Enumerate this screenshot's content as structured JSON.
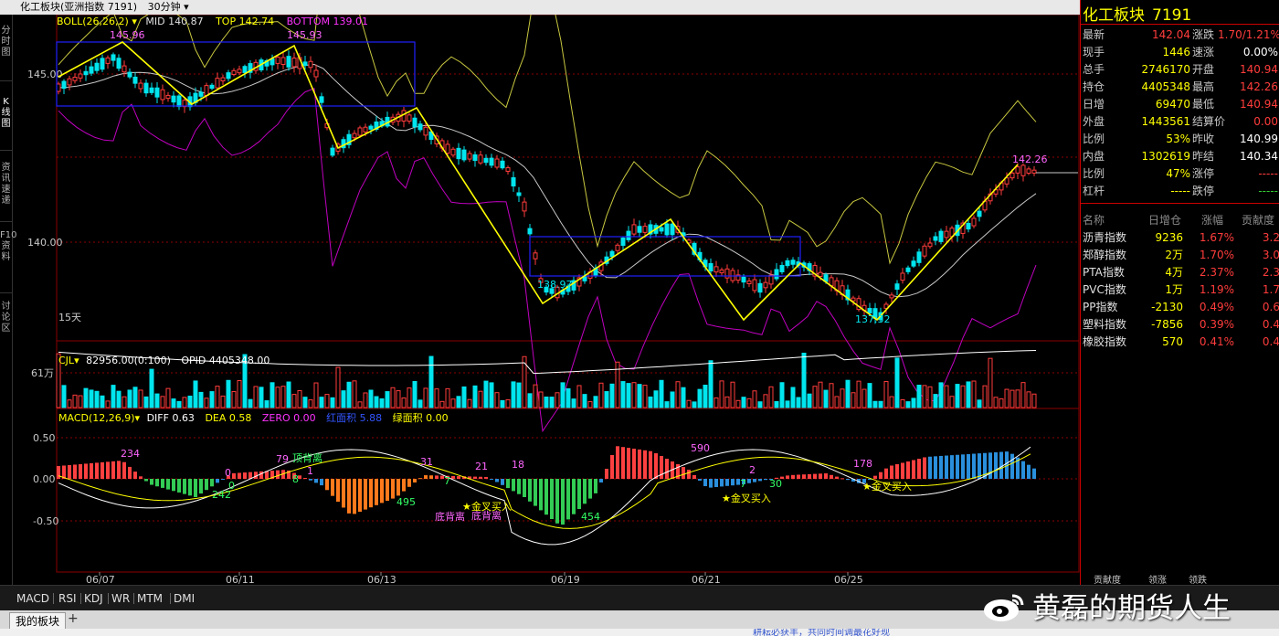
{
  "window": {
    "title": "化工板块(亚洲指数 7191)",
    "period": "30分钟",
    "close_glyph": "✕",
    "max_glyph": "□",
    "min_glyph": "−"
  },
  "left_tabs": [
    {
      "label": "分时图",
      "active": false
    },
    {
      "label": "K线图",
      "active": true
    },
    {
      "label": "资讯速递",
      "active": false
    },
    {
      "label": "F10资料",
      "active": false
    },
    {
      "label": "讨论区",
      "active": false
    }
  ],
  "boll_header": {
    "name": "BOLL(26,26,2)",
    "mid": "MID 140.87",
    "top": "TOP 142.74",
    "bottom": "BOTTOM 139.01"
  },
  "colors": {
    "up": "#ff3c3c",
    "down": "#00e5ee",
    "boll_top": "#c8c840",
    "boll_mid": "#c8c8c8",
    "boll_bot": "#c000c0",
    "zigzag": "#ffff00",
    "box": "#2020ff",
    "grid": "#8b0000",
    "macd_pos": "#ff4040",
    "macd_pos_dim": "#2a8fdc",
    "macd_neg": "#ff7a1c",
    "macd_neg_green": "#33cc55"
  },
  "price_axis": {
    "ticks": [
      "145.00",
      "140.00"
    ]
  },
  "peak_labels": [
    "145.96",
    "145.93",
    "138.97",
    "137.32",
    "142.26"
  ],
  "time_span_label": "15天",
  "cjl_header": {
    "name": "CJL",
    "vol": "82956.00(0:100)",
    "opid": "OPID 4405348.00"
  },
  "vol_axis": {
    "tick": "61万"
  },
  "macd_header": {
    "name": "MACD(12,26,9)",
    "diff": "DIFF 0.63",
    "dea": "DEA 0.58",
    "zero": "ZERO 0.00",
    "red_area": "红面积 5.88",
    "green_area": "绿面积 0.00"
  },
  "macd_axis": {
    "ticks": [
      "0.50",
      "0.00",
      "-0.50"
    ]
  },
  "macd_annotations": [
    {
      "text": "234"
    },
    {
      "text": "0"
    },
    {
      "text": "242"
    },
    {
      "text": "0"
    },
    {
      "text": "79"
    },
    {
      "text": "顶背离"
    },
    {
      "text": "8"
    },
    {
      "text": "1"
    },
    {
      "text": "495"
    },
    {
      "text": "31"
    },
    {
      "text": "7"
    },
    {
      "text": "21"
    },
    {
      "text": "18"
    },
    {
      "text": "★金叉买入"
    },
    {
      "text": "底背离"
    },
    {
      "text": "底背离"
    },
    {
      "text": "454"
    },
    {
      "text": "590"
    },
    {
      "text": "2"
    },
    {
      "text": "7"
    },
    {
      "text": "30"
    },
    {
      "text": "★金叉买入"
    },
    {
      "text": "178"
    },
    {
      "text": "★金叉买入"
    }
  ],
  "date_axis": [
    "06/07",
    "06/11",
    "06/13",
    "06/19",
    "06/21",
    "06/25"
  ],
  "quote": {
    "name": "化工板块",
    "code": "7191",
    "rows": [
      {
        "l1": "最新",
        "v1": "142.04",
        "c1": "#ff3c3c",
        "l2": "涨跌",
        "v2": "1.70/1.21%",
        "c2": "#ff3c3c"
      },
      {
        "l1": "现手",
        "v1": "1446",
        "c1": "#ffff00",
        "l2": "速涨",
        "v2": "0.00%",
        "c2": "#ffffff"
      },
      {
        "l1": "总手",
        "v1": "2746170",
        "c1": "#ffff00",
        "l2": "开盘",
        "v2": "140.94",
        "c2": "#ff3c3c"
      },
      {
        "l1": "持仓",
        "v1": "4405348",
        "c1": "#ffff00",
        "l2": "最高",
        "v2": "142.26",
        "c2": "#ff3c3c"
      },
      {
        "l1": "日增",
        "v1": "69470",
        "c1": "#ffff00",
        "l2": "最低",
        "v2": "140.94",
        "c2": "#ff3c3c"
      },
      {
        "l1": "外盘",
        "v1": "1443561",
        "c1": "#ffff00",
        "l2": "结算价",
        "v2": "0.00",
        "c2": "#ff3c3c"
      },
      {
        "l1": "比例",
        "v1": "53%",
        "c1": "#ffff00",
        "l2": "昨收",
        "v2": "140.99",
        "c2": "#ffffff"
      },
      {
        "l1": "内盘",
        "v1": "1302619",
        "c1": "#ffff00",
        "l2": "昨结",
        "v2": "140.34",
        "c2": "#ffffff"
      },
      {
        "l1": "比例",
        "v1": "47%",
        "c1": "#ffff00",
        "l2": "涨停",
        "v2": "-----",
        "c2": "#ff3c3c"
      },
      {
        "l1": "杠杆",
        "v1": "-----",
        "c1": "#ffff00",
        "l2": "跌停",
        "v2": "-----",
        "c2": "#33cc33"
      }
    ]
  },
  "contrib_table": {
    "headers": [
      "名称",
      "日增仓",
      "涨幅",
      "贡献度"
    ],
    "rows": [
      [
        "沥青指数",
        "9236",
        "1.67%",
        "3.2"
      ],
      [
        "郑醇指数",
        "2万",
        "1.70%",
        "3.0"
      ],
      [
        "PTA指数",
        "4万",
        "2.37%",
        "2.3"
      ],
      [
        "PVC指数",
        "1万",
        "1.19%",
        "1.7"
      ],
      [
        "PP指数",
        "-2130",
        "0.49%",
        "0.6"
      ],
      [
        "塑料指数",
        "-7856",
        "0.39%",
        "0.4"
      ],
      [
        "橡胶指数",
        "570",
        "0.41%",
        "0.4"
      ]
    ]
  },
  "bottom_side_tabs": [
    "贡献度",
    "领涨",
    "领跌"
  ],
  "indicator_tabs": [
    "MACD",
    "RSI",
    "KDJ",
    "WR",
    "MTM",
    "DMI"
  ],
  "block_tab": "我的板块",
  "plus": "+",
  "watermark": "黄磊的期货人生",
  "news": "耕耘必获丰，共同时间调最花好现"
}
